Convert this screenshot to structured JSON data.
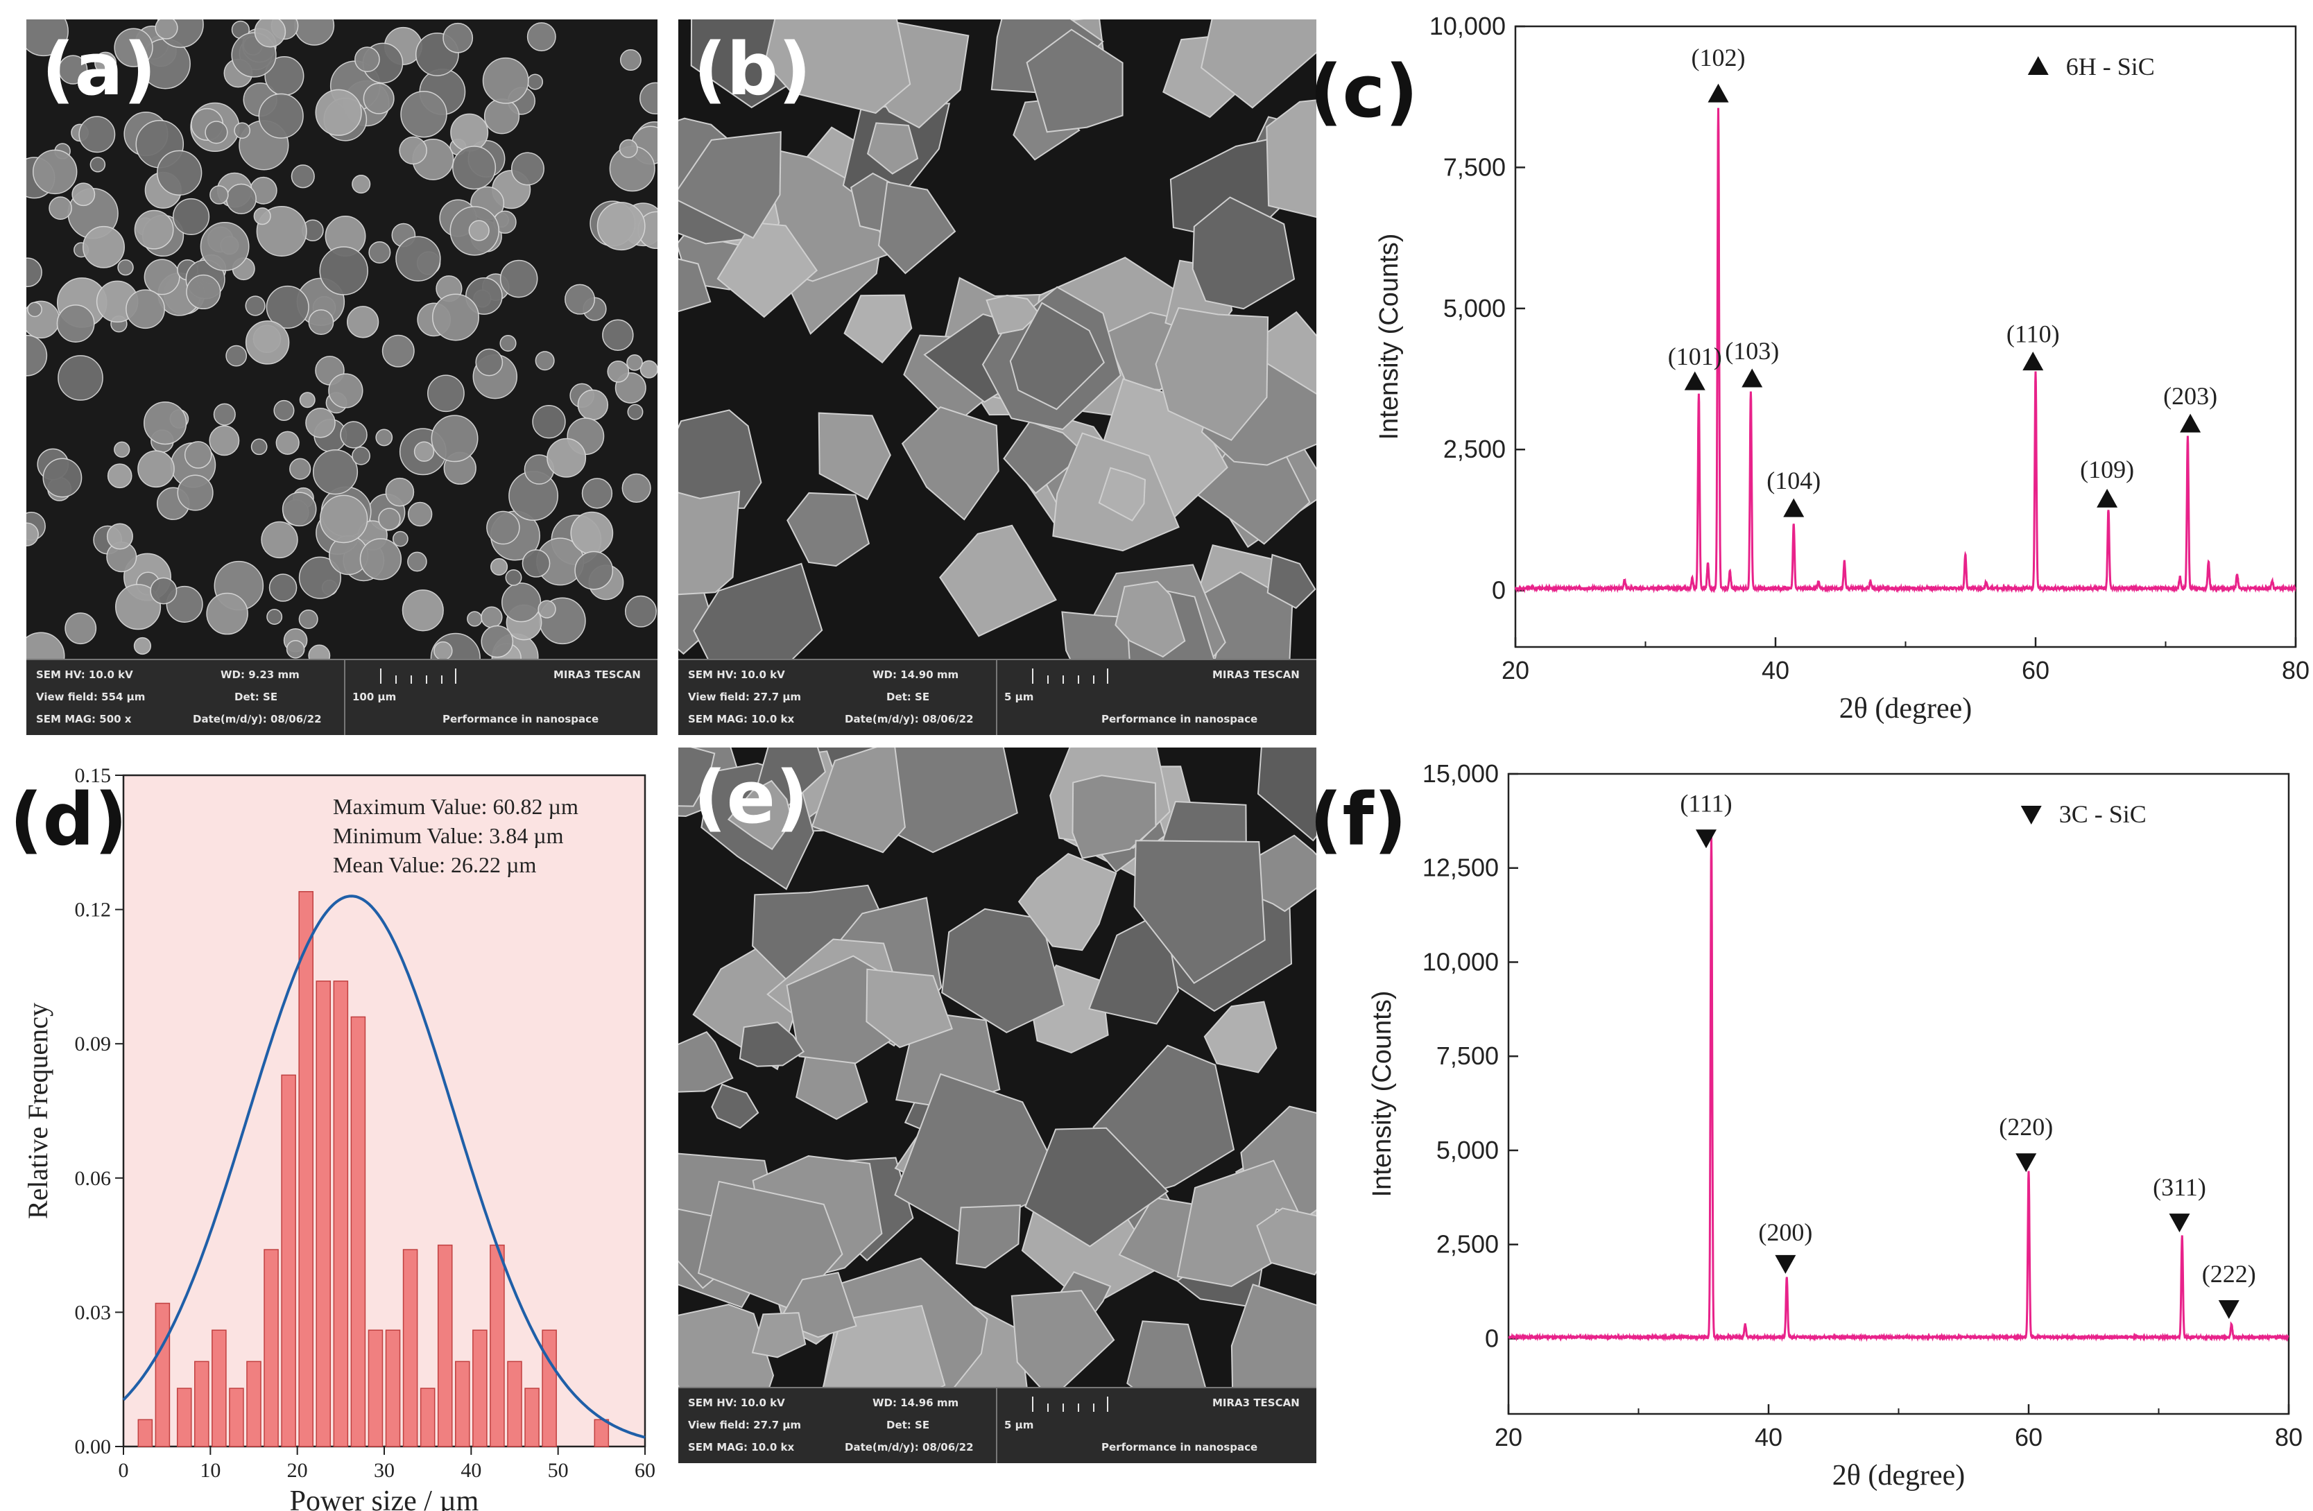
{
  "labels": {
    "a": "(a)",
    "b": "(b)",
    "c": "(c)",
    "d": "(d)",
    "e": "(e)",
    "f": "(f)"
  },
  "sem": {
    "a": {
      "hv": "SEM HV: 10.0 kV",
      "wd": "WD: 9.23 mm",
      "brand": "MIRA3 TESCAN",
      "view": "View field: 554 µm",
      "det": "Det: SE",
      "scale": "100 µm",
      "mag": "SEM MAG: 500 x",
      "date": "Date(m/d/y): 08/06/22",
      "tagline": "Performance in nanospace"
    },
    "b": {
      "hv": "SEM HV: 10.0 kV",
      "wd": "WD: 14.90 mm",
      "brand": "MIRA3 TESCAN",
      "view": "View field: 27.7 µm",
      "det": "Det: SE",
      "scale": "5 µm",
      "mag": "SEM MAG: 10.0 kx",
      "date": "Date(m/d/y): 08/06/22",
      "tagline": "Performance in nanospace"
    },
    "e": {
      "hv": "SEM HV: 10.0 kV",
      "wd": "WD: 14.96 mm",
      "brand": "MIRA3 TESCAN",
      "view": "View field: 27.7 µm",
      "det": "Det: SE",
      "scale": "5 µm",
      "mag": "SEM MAG: 10.0 kx",
      "date": "Date(m/d/y): 08/06/22",
      "tagline": "Performance in nanospace"
    }
  },
  "chart_data": [
    {
      "id": "c",
      "type": "line",
      "xlabel": "2θ (degree)",
      "ylabel": "Intensity (Counts)",
      "xlim": [
        20,
        80
      ],
      "ylim": [
        -1000,
        10000
      ],
      "xticks": [
        "20",
        "40",
        "60",
        "80"
      ],
      "yticks": [
        "0",
        "2,500",
        "5,000",
        "7,500",
        "10,000"
      ],
      "legend": {
        "marker": "triangle-up",
        "label": "6H - SiC",
        "position": "top-right"
      },
      "color": "#e8228a",
      "peaks": [
        {
          "x": 28.4,
          "y": 150
        },
        {
          "x": 33.6,
          "y": 180
        },
        {
          "x": 34.1,
          "y": 3450
        },
        {
          "x": 34.8,
          "y": 450
        },
        {
          "x": 35.6,
          "y": 8500
        },
        {
          "x": 36.5,
          "y": 300
        },
        {
          "x": 38.1,
          "y": 3500
        },
        {
          "x": 41.4,
          "y": 1150
        },
        {
          "x": 43.3,
          "y": 120
        },
        {
          "x": 45.3,
          "y": 480
        },
        {
          "x": 47.3,
          "y": 120
        },
        {
          "x": 54.6,
          "y": 600
        },
        {
          "x": 56.2,
          "y": 120
        },
        {
          "x": 60.0,
          "y": 3850
        },
        {
          "x": 65.6,
          "y": 1400
        },
        {
          "x": 71.1,
          "y": 200
        },
        {
          "x": 71.7,
          "y": 2700
        },
        {
          "x": 73.3,
          "y": 480
        },
        {
          "x": 75.5,
          "y": 250
        },
        {
          "x": 78.2,
          "y": 130
        }
      ],
      "annotations": [
        {
          "text": "(102)",
          "x": 35.6,
          "y": 9300,
          "marker_y": 8800
        },
        {
          "text": "(101)",
          "x": 33.8,
          "y": 4000,
          "marker_y": 3700
        },
        {
          "text": "(103)",
          "x": 38.2,
          "y": 4100,
          "marker_y": 3750
        },
        {
          "text": "(104)",
          "x": 41.4,
          "y": 1800,
          "marker_y": 1450
        },
        {
          "text": "(110)",
          "x": 59.8,
          "y": 4400,
          "marker_y": 4050
        },
        {
          "text": "(109)",
          "x": 65.5,
          "y": 2000,
          "marker_y": 1620
        },
        {
          "text": "(203)",
          "x": 71.9,
          "y": 3300,
          "marker_y": 2950
        }
      ]
    },
    {
      "id": "d",
      "type": "bar",
      "xlabel": "Power size / µm",
      "ylabel": "Relative Frequency",
      "xlim": [
        0,
        60
      ],
      "ylim": [
        0,
        0.15
      ],
      "xticks": [
        "0",
        "10",
        "20",
        "30",
        "40",
        "50",
        "60"
      ],
      "yticks": [
        "0.00",
        "0.03",
        "0.06",
        "0.09",
        "0.12",
        "0.15"
      ],
      "bin_width": 1.6,
      "bins": [
        {
          "x": 2.5,
          "value": 0.006
        },
        {
          "x": 4.5,
          "value": 0.032
        },
        {
          "x": 7.0,
          "value": 0.013
        },
        {
          "x": 9.0,
          "value": 0.019
        },
        {
          "x": 11.0,
          "value": 0.026
        },
        {
          "x": 13.0,
          "value": 0.013
        },
        {
          "x": 15.0,
          "value": 0.019
        },
        {
          "x": 17.0,
          "value": 0.044
        },
        {
          "x": 19.0,
          "value": 0.083
        },
        {
          "x": 21.0,
          "value": 0.124
        },
        {
          "x": 23.0,
          "value": 0.104
        },
        {
          "x": 25.0,
          "value": 0.104
        },
        {
          "x": 27.0,
          "value": 0.096
        },
        {
          "x": 29.0,
          "value": 0.026
        },
        {
          "x": 31.0,
          "value": 0.026
        },
        {
          "x": 33.0,
          "value": 0.044
        },
        {
          "x": 35.0,
          "value": 0.013
        },
        {
          "x": 37.0,
          "value": 0.045
        },
        {
          "x": 39.0,
          "value": 0.019
        },
        {
          "x": 41.0,
          "value": 0.026
        },
        {
          "x": 43.0,
          "value": 0.045
        },
        {
          "x": 45.0,
          "value": 0.019
        },
        {
          "x": 47.0,
          "value": 0.013
        },
        {
          "x": 49.0,
          "value": 0.026
        },
        {
          "x": 55.0,
          "value": 0.006
        }
      ],
      "fit": {
        "type": "gaussian",
        "mean": 26.22,
        "peak": 0.123,
        "sigma": 11.8,
        "color": "#1f5fa8"
      },
      "stats": [
        "Maximum Value:   60.82 µm",
        "Minimum Value:     3.84 µm",
        "Mean Value:   26.22 µm"
      ],
      "bar_color": "#f08080",
      "background": "#fbe3e2"
    },
    {
      "id": "f",
      "type": "line",
      "xlabel": "2θ (degree)",
      "ylabel": "Intensity (Counts)",
      "xlim": [
        20,
        80
      ],
      "ylim": [
        -2000,
        15000
      ],
      "xticks": [
        "20",
        "40",
        "60",
        "80"
      ],
      "yticks": [
        "0",
        "2,500",
        "5,000",
        "7,500",
        "10,000",
        "12,500",
        "15,000"
      ],
      "legend": {
        "marker": "triangle-down",
        "label": "3C - SiC",
        "position": "top-right"
      },
      "color": "#e8228a",
      "peaks": [
        {
          "x": 35.6,
          "y": 13300
        },
        {
          "x": 38.2,
          "y": 350
        },
        {
          "x": 41.4,
          "y": 1600
        },
        {
          "x": 60.0,
          "y": 4400
        },
        {
          "x": 71.8,
          "y": 2700
        },
        {
          "x": 75.6,
          "y": 350
        }
      ],
      "annotations": [
        {
          "text": "(111)",
          "x": 35.2,
          "y": 14000,
          "marker_y": 13300
        },
        {
          "text": "(200)",
          "x": 41.3,
          "y": 2600,
          "marker_y": 2000
        },
        {
          "text": "(220)",
          "x": 59.8,
          "y": 5400,
          "marker_y": 4700
        },
        {
          "text": "(311)",
          "x": 71.6,
          "y": 3800,
          "marker_y": 3100
        },
        {
          "text": "(222)",
          "x": 75.4,
          "y": 1500,
          "marker_y": 800
        }
      ]
    }
  ]
}
